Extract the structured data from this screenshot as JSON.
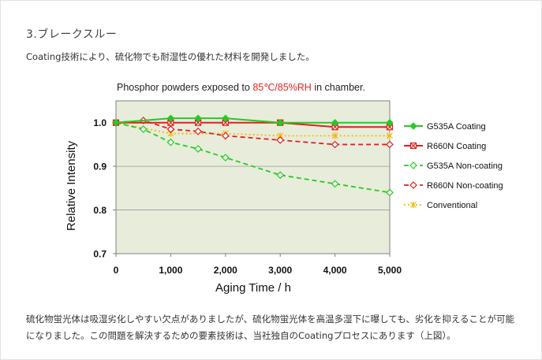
{
  "section": {
    "heading": "3.ブレークスルー",
    "intro": "Coating技術により、硫化物でも耐湿性の優れた材料を開発しました。",
    "outro": "硫化物蛍光体は吸湿劣化しやすい欠点がありましたが、硫化物蛍光体を高温多湿下に曝しても、劣化を抑えることが可能になりました。この問題を解決するための要素技術は、当社独自のCoatingプロセスにあります（上図）。"
  },
  "chart_data": {
    "type": "line",
    "title_prefix": "Phosphor powders exposed to ",
    "title_highlight": "85℃/85%RH",
    "title_suffix": " in chamber.",
    "title_highlight_color": "#e8231f",
    "xlabel": "Aging Time / h",
    "ylabel": "Relative Intensity",
    "xlim": [
      0,
      5000
    ],
    "ylim": [
      0.7,
      1.05
    ],
    "xticks": [
      0,
      1000,
      2000,
      3000,
      4000,
      5000
    ],
    "xtick_labels": [
      "0",
      "1,000",
      "2,000",
      "3,000",
      "4,000",
      "5,000"
    ],
    "yticks": [
      0.7,
      0.8,
      0.9,
      1.0
    ],
    "ytick_labels": [
      "0.7",
      "0.8",
      "0.9",
      "1.0"
    ],
    "grid": true,
    "plot_background": "#e8ecdb",
    "legend_position": "right",
    "series": [
      {
        "name": "G535A Coating",
        "color": "#22cc22",
        "line": "solid",
        "marker": "diamond-filled",
        "x": [
          0,
          1000,
          1500,
          2000,
          3000,
          4000,
          5000
        ],
        "y": [
          1.0,
          1.01,
          1.01,
          1.01,
          1.0,
          1.0,
          1.0
        ]
      },
      {
        "name": "R660N Coating",
        "color": "#e02020",
        "line": "solid",
        "marker": "square-x",
        "x": [
          0,
          1000,
          1500,
          2000,
          3000,
          4000,
          5000
        ],
        "y": [
          1.0,
          1.0,
          1.0,
          1.0,
          1.0,
          0.99,
          0.99
        ]
      },
      {
        "name": "G535A Non-coating",
        "color": "#22cc22",
        "line": "dashed",
        "marker": "diamond-open",
        "x": [
          0,
          500,
          1000,
          1500,
          2000,
          3000,
          4000,
          5000
        ],
        "y": [
          1.0,
          0.985,
          0.955,
          0.94,
          0.92,
          0.88,
          0.86,
          0.84
        ]
      },
      {
        "name": "R660N Non-coating",
        "color": "#e02020",
        "line": "dashed",
        "marker": "diamond-open",
        "x": [
          0,
          500,
          1000,
          1500,
          2000,
          3000,
          4000,
          5000
        ],
        "y": [
          1.0,
          1.005,
          0.985,
          0.98,
          0.97,
          0.96,
          0.95,
          0.95
        ]
      },
      {
        "name": "Conventional",
        "color": "#f5b800",
        "line": "dotted",
        "marker": "asterisk",
        "x": [
          0,
          1000,
          2000,
          3000,
          4000,
          5000
        ],
        "y": [
          1.0,
          0.975,
          0.975,
          0.97,
          0.97,
          0.97
        ]
      }
    ]
  }
}
